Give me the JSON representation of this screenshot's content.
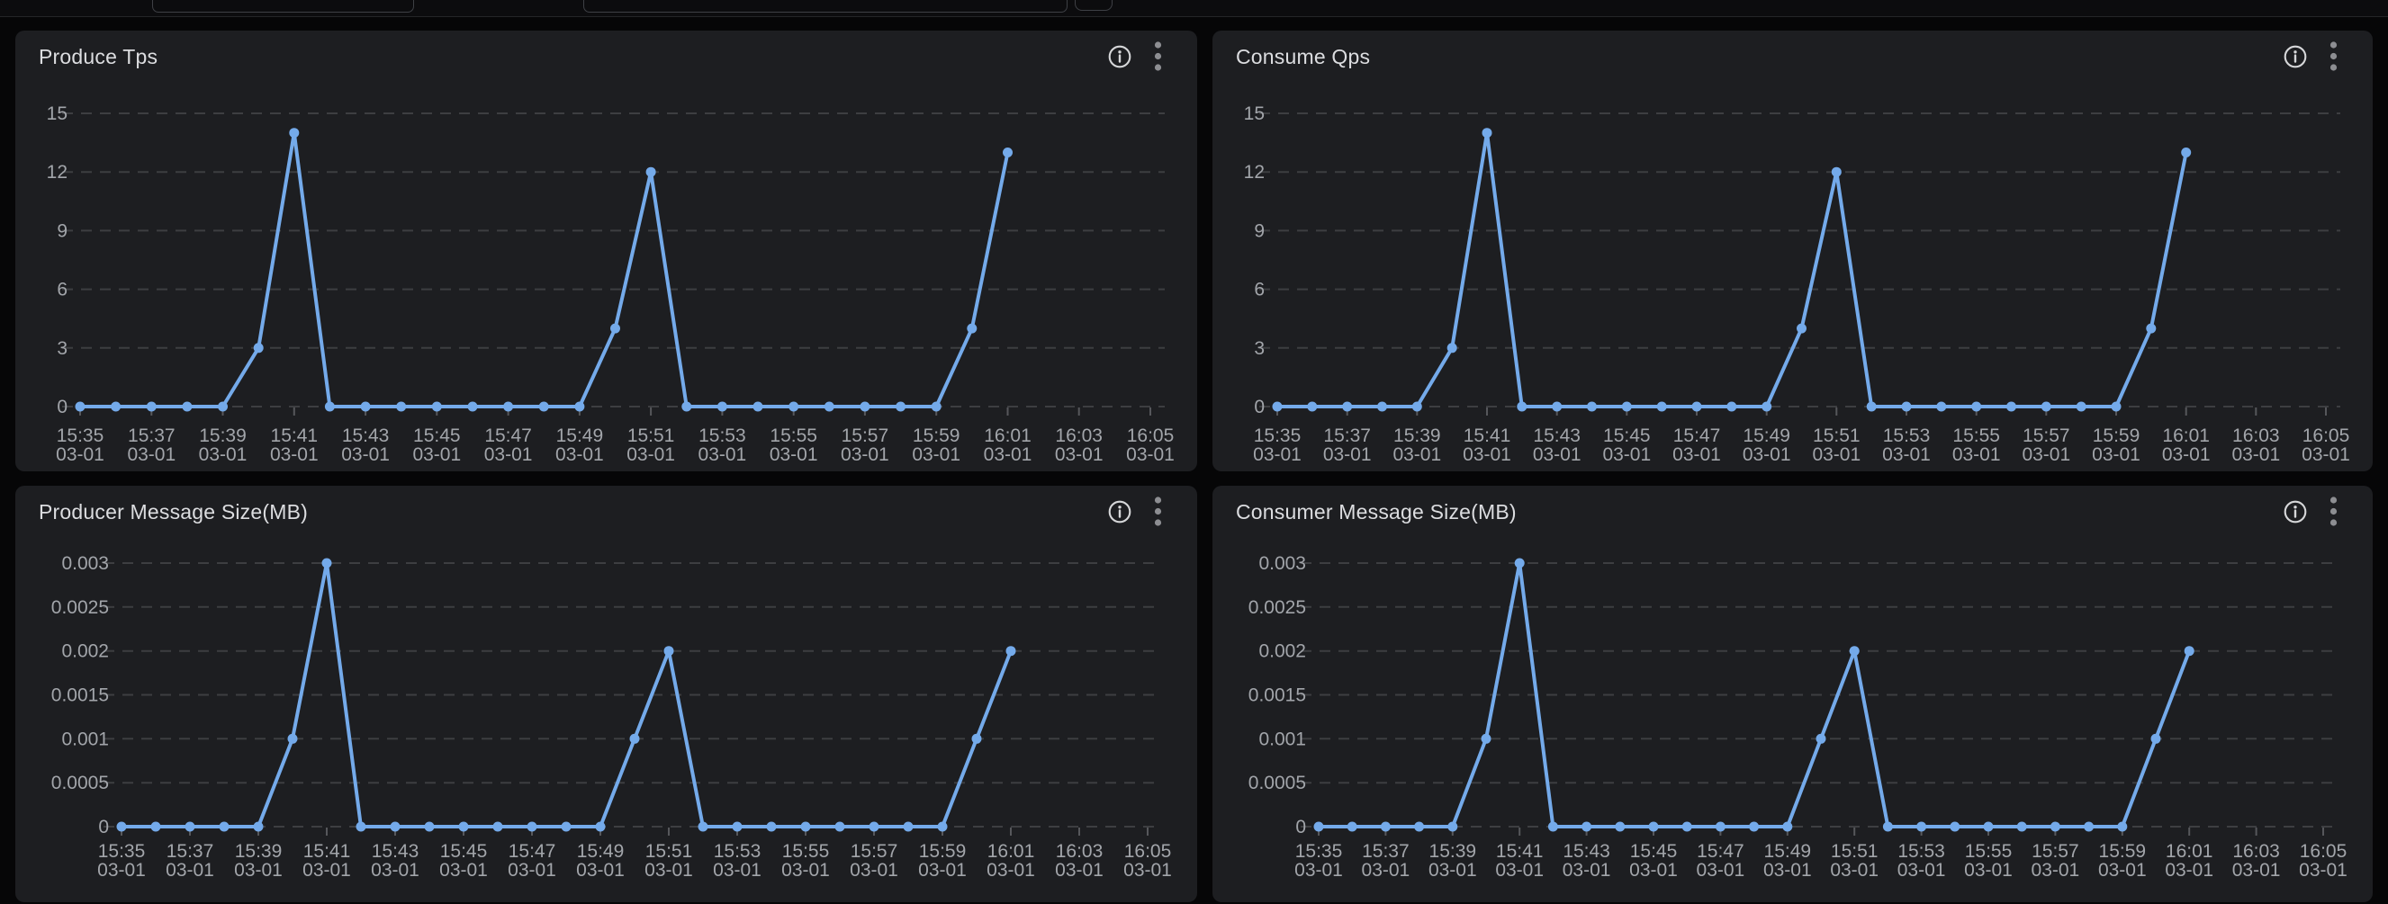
{
  "colors": {
    "page_bg": "#060607",
    "panel_bg": "#1d1e21",
    "line": "#74aaea",
    "grid": "#3d3e41",
    "tick_mark": "#56575b",
    "tick_label": "#a2a5aa",
    "title": "#dcdde0",
    "kebab_icon": "#8d8e92",
    "info_icon": "#d6d7d9",
    "input_border": "#3e4045"
  },
  "toolbar": {
    "input_1_value": "",
    "input_2_value": "",
    "button_label": ""
  },
  "panels": [
    {
      "title": "Produce Tps",
      "icons": [
        "info-icon",
        "kebab-menu-icon"
      ]
    },
    {
      "title": "Consume Qps",
      "icons": [
        "info-icon",
        "kebab-menu-icon"
      ]
    },
    {
      "title": "Producer Message Size(MB)",
      "icons": [
        "info-icon",
        "kebab-menu-icon"
      ]
    },
    {
      "title": "Consumer Message Size(MB)",
      "icons": [
        "info-icon",
        "kebab-menu-icon"
      ]
    }
  ],
  "chart_data": [
    {
      "type": "line",
      "title": "Produce Tps",
      "categories": [
        "15:35",
        "15:36",
        "15:37",
        "15:38",
        "15:39",
        "15:40",
        "15:41",
        "15:42",
        "15:43",
        "15:44",
        "15:45",
        "15:46",
        "15:47",
        "15:48",
        "15:49",
        "15:50",
        "15:51",
        "15:52",
        "15:53",
        "15:54",
        "15:55",
        "15:56",
        "15:57",
        "15:58",
        "15:59",
        "16:00",
        "16:01"
      ],
      "values": [
        0,
        0,
        0,
        0,
        0,
        3,
        14,
        0,
        0,
        0,
        0,
        0,
        0,
        0,
        0,
        4,
        12,
        0,
        0,
        0,
        0,
        0,
        0,
        0,
        0,
        4,
        13
      ],
      "x_tick_labels": [
        "15:35",
        "15:37",
        "15:39",
        "15:41",
        "15:43",
        "15:45",
        "15:47",
        "15:49",
        "15:51",
        "15:53",
        "15:55",
        "15:57",
        "15:59",
        "16:01",
        "16:03",
        "16:05"
      ],
      "x_tick_date": "03-01",
      "x_range": [
        "15:35",
        "16:05"
      ],
      "y_ticks": [
        0,
        3,
        6,
        9,
        12,
        15
      ],
      "y_tick_labels": [
        "0",
        "3",
        "6",
        "9",
        "12",
        "15"
      ],
      "ylim": [
        0,
        15
      ],
      "grid": "dashed-horizontal",
      "legend": "none",
      "line_color": "#74aaea"
    },
    {
      "type": "line",
      "title": "Consume Qps",
      "categories": [
        "15:35",
        "15:36",
        "15:37",
        "15:38",
        "15:39",
        "15:40",
        "15:41",
        "15:42",
        "15:43",
        "15:44",
        "15:45",
        "15:46",
        "15:47",
        "15:48",
        "15:49",
        "15:50",
        "15:51",
        "15:52",
        "15:53",
        "15:54",
        "15:55",
        "15:56",
        "15:57",
        "15:58",
        "15:59",
        "16:00",
        "16:01"
      ],
      "values": [
        0,
        0,
        0,
        0,
        0,
        3,
        14,
        0,
        0,
        0,
        0,
        0,
        0,
        0,
        0,
        4,
        12,
        0,
        0,
        0,
        0,
        0,
        0,
        0,
        0,
        4,
        13
      ],
      "x_tick_labels": [
        "15:35",
        "15:37",
        "15:39",
        "15:41",
        "15:43",
        "15:45",
        "15:47",
        "15:49",
        "15:51",
        "15:53",
        "15:55",
        "15:57",
        "15:59",
        "16:01",
        "16:03",
        "16:05"
      ],
      "x_tick_date": "03-01",
      "x_range": [
        "15:35",
        "16:05"
      ],
      "y_ticks": [
        0,
        3,
        6,
        9,
        12,
        15
      ],
      "y_tick_labels": [
        "0",
        "3",
        "6",
        "9",
        "12",
        "15"
      ],
      "ylim": [
        0,
        15
      ],
      "grid": "dashed-horizontal",
      "legend": "none",
      "line_color": "#74aaea"
    },
    {
      "type": "line",
      "title": "Producer Message Size(MB)",
      "categories": [
        "15:35",
        "15:36",
        "15:37",
        "15:38",
        "15:39",
        "15:40",
        "15:41",
        "15:42",
        "15:43",
        "15:44",
        "15:45",
        "15:46",
        "15:47",
        "15:48",
        "15:49",
        "15:50",
        "15:51",
        "15:52",
        "15:53",
        "15:54",
        "15:55",
        "15:56",
        "15:57",
        "15:58",
        "15:59",
        "16:00",
        "16:01"
      ],
      "values": [
        0,
        0,
        0,
        0,
        0,
        0.001,
        0.003,
        0,
        0,
        0,
        0,
        0,
        0,
        0,
        0,
        0.001,
        0.002,
        0,
        0,
        0,
        0,
        0,
        0,
        0,
        0,
        0.001,
        0.002
      ],
      "x_tick_labels": [
        "15:35",
        "15:37",
        "15:39",
        "15:41",
        "15:43",
        "15:45",
        "15:47",
        "15:49",
        "15:51",
        "15:53",
        "15:55",
        "15:57",
        "15:59",
        "16:01",
        "16:03",
        "16:05"
      ],
      "x_tick_date": "03-01",
      "x_range": [
        "15:35",
        "16:05"
      ],
      "y_ticks": [
        0,
        0.0005,
        0.001,
        0.0015,
        0.002,
        0.0025,
        0.003
      ],
      "y_tick_labels": [
        "0",
        "0.0005",
        "0.001",
        "0.0015",
        "0.002",
        "0.0025",
        "0.003"
      ],
      "ylim": [
        0,
        0.003
      ],
      "grid": "dashed-horizontal",
      "legend": "none",
      "line_color": "#74aaea"
    },
    {
      "type": "line",
      "title": "Consumer Message Size(MB)",
      "categories": [
        "15:35",
        "15:36",
        "15:37",
        "15:38",
        "15:39",
        "15:40",
        "15:41",
        "15:42",
        "15:43",
        "15:44",
        "15:45",
        "15:46",
        "15:47",
        "15:48",
        "15:49",
        "15:50",
        "15:51",
        "15:52",
        "15:53",
        "15:54",
        "15:55",
        "15:56",
        "15:57",
        "15:58",
        "15:59",
        "16:00",
        "16:01"
      ],
      "values": [
        0,
        0,
        0,
        0,
        0,
        0.001,
        0.003,
        0,
        0,
        0,
        0,
        0,
        0,
        0,
        0,
        0.001,
        0.002,
        0,
        0,
        0,
        0,
        0,
        0,
        0,
        0,
        0.001,
        0.002
      ],
      "x_tick_labels": [
        "15:35",
        "15:37",
        "15:39",
        "15:41",
        "15:43",
        "15:45",
        "15:47",
        "15:49",
        "15:51",
        "15:53",
        "15:55",
        "15:57",
        "15:59",
        "16:01",
        "16:03",
        "16:05"
      ],
      "x_tick_date": "03-01",
      "x_range": [
        "15:35",
        "16:05"
      ],
      "y_ticks": [
        0,
        0.0005,
        0.001,
        0.0015,
        0.002,
        0.0025,
        0.003
      ],
      "y_tick_labels": [
        "0",
        "0.0005",
        "0.001",
        "0.0015",
        "0.002",
        "0.0025",
        "0.003"
      ],
      "ylim": [
        0,
        0.003
      ],
      "grid": "dashed-horizontal",
      "legend": "none",
      "line_color": "#74aaea"
    }
  ]
}
